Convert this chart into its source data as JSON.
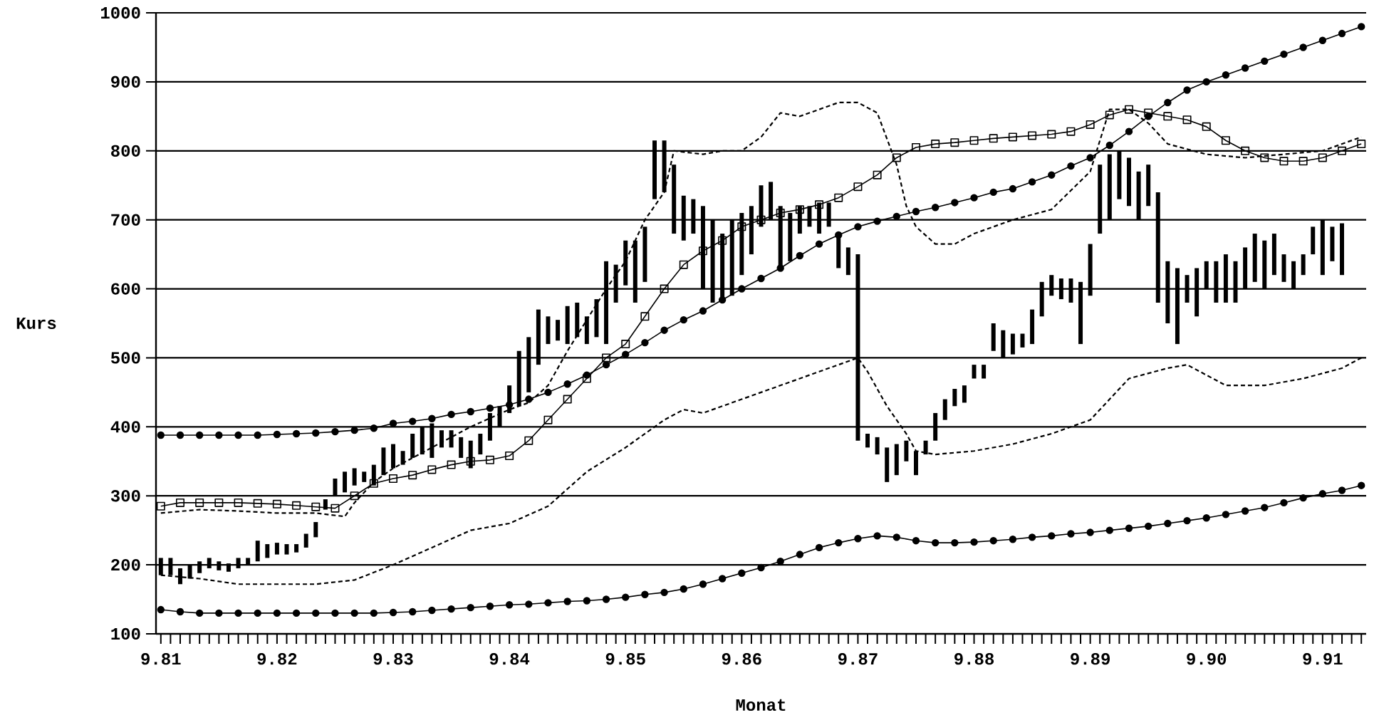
{
  "chart_data": {
    "type": "bar",
    "xlabel": "Monat",
    "ylabel": "Kurs",
    "grid": "y",
    "xlim": [
      "1981-08-16",
      "1992-01-16"
    ],
    "ylim": [
      100,
      1000
    ],
    "yticks": [
      100,
      200,
      300,
      400,
      500,
      600,
      700,
      800,
      900,
      1000
    ],
    "xticks": [
      {
        "value": "1981-09",
        "label": "9.81"
      },
      {
        "value": "1981-10",
        "label": null
      },
      {
        "value": "1981-11",
        "label": null
      },
      {
        "value": "1981-12",
        "label": null
      },
      {
        "value": "1982-01",
        "label": null
      },
      {
        "value": "1982-02",
        "label": null
      },
      {
        "value": "1982-03",
        "label": null
      },
      {
        "value": "1982-04",
        "label": null
      },
      {
        "value": "1982-05",
        "label": null
      },
      {
        "value": "1982-06",
        "label": null
      },
      {
        "value": "1982-07",
        "label": null
      },
      {
        "value": "1982-08",
        "label": null
      },
      {
        "value": "1982-09",
        "label": "9.82"
      },
      {
        "value": "1982-10",
        "label": null
      },
      {
        "value": "1982-11",
        "label": null
      },
      {
        "value": "1982-12",
        "label": null
      },
      {
        "value": "1983-01",
        "label": null
      },
      {
        "value": "1983-02",
        "label": null
      },
      {
        "value": "1983-03",
        "label": null
      },
      {
        "value": "1983-04",
        "label": null
      },
      {
        "value": "1983-05",
        "label": null
      },
      {
        "value": "1983-06",
        "label": null
      },
      {
        "value": "1983-07",
        "label": null
      },
      {
        "value": "1983-08",
        "label": null
      },
      {
        "value": "1983-09",
        "label": "9.83"
      },
      {
        "value": "1983-10",
        "label": null
      },
      {
        "value": "1983-11",
        "label": null
      },
      {
        "value": "1983-12",
        "label": null
      },
      {
        "value": "1984-01",
        "label": null
      },
      {
        "value": "1984-02",
        "label": null
      },
      {
        "value": "1984-03",
        "label": null
      },
      {
        "value": "1984-04",
        "label": null
      },
      {
        "value": "1984-05",
        "label": null
      },
      {
        "value": "1984-06",
        "label": null
      },
      {
        "value": "1984-07",
        "label": null
      },
      {
        "value": "1984-08",
        "label": null
      },
      {
        "value": "1984-09",
        "label": "9.84"
      },
      {
        "value": "1984-10",
        "label": null
      },
      {
        "value": "1984-11",
        "label": null
      },
      {
        "value": "1984-12",
        "label": null
      },
      {
        "value": "1985-01",
        "label": null
      },
      {
        "value": "1985-02",
        "label": null
      },
      {
        "value": "1985-03",
        "label": null
      },
      {
        "value": "1985-04",
        "label": null
      },
      {
        "value": "1985-05",
        "label": null
      },
      {
        "value": "1985-06",
        "label": null
      },
      {
        "value": "1985-07",
        "label": null
      },
      {
        "value": "1985-08",
        "label": null
      },
      {
        "value": "1985-09",
        "label": "9.85"
      },
      {
        "value": "1985-10",
        "label": null
      },
      {
        "value": "1985-11",
        "label": null
      },
      {
        "value": "1985-12",
        "label": null
      },
      {
        "value": "1986-01",
        "label": null
      },
      {
        "value": "1986-02",
        "label": null
      },
      {
        "value": "1986-03",
        "label": null
      },
      {
        "value": "1986-04",
        "label": null
      },
      {
        "value": "1986-05",
        "label": null
      },
      {
        "value": "1986-06",
        "label": null
      },
      {
        "value": "1986-07",
        "label": null
      },
      {
        "value": "1986-08",
        "label": null
      },
      {
        "value": "1986-09",
        "label": "9.86"
      },
      {
        "value": "1986-10",
        "label": null
      },
      {
        "value": "1986-11",
        "label": null
      },
      {
        "value": "1986-12",
        "label": null
      },
      {
        "value": "1987-01",
        "label": null
      },
      {
        "value": "1987-02",
        "label": null
      },
      {
        "value": "1987-03",
        "label": null
      },
      {
        "value": "1987-04",
        "label": null
      },
      {
        "value": "1987-05",
        "label": null
      },
      {
        "value": "1987-06",
        "label": null
      },
      {
        "value": "1987-07",
        "label": null
      },
      {
        "value": "1987-08",
        "label": null
      },
      {
        "value": "1987-09",
        "label": "9.87"
      },
      {
        "value": "1987-10",
        "label": null
      },
      {
        "value": "1987-11",
        "label": null
      },
      {
        "value": "1987-12",
        "label": null
      },
      {
        "value": "1988-01",
        "label": null
      },
      {
        "value": "1988-02",
        "label": null
      },
      {
        "value": "1988-03",
        "label": null
      },
      {
        "value": "1988-04",
        "label": null
      },
      {
        "value": "1988-05",
        "label": null
      },
      {
        "value": "1988-06",
        "label": null
      },
      {
        "value": "1988-07",
        "label": null
      },
      {
        "value": "1988-08",
        "label": null
      },
      {
        "value": "1988-09",
        "label": "9.88"
      },
      {
        "value": "1988-10",
        "label": null
      },
      {
        "value": "1988-11",
        "label": null
      },
      {
        "value": "1988-12",
        "label": null
      },
      {
        "value": "1989-01",
        "label": null
      },
      {
        "value": "1989-02",
        "label": null
      },
      {
        "value": "1989-03",
        "label": null
      },
      {
        "value": "1989-04",
        "label": null
      },
      {
        "value": "1989-05",
        "label": null
      },
      {
        "value": "1989-06",
        "label": null
      },
      {
        "value": "1989-07",
        "label": null
      },
      {
        "value": "1989-08",
        "label": null
      },
      {
        "value": "1989-09",
        "label": "9.89"
      },
      {
        "value": "1989-10",
        "label": null
      },
      {
        "value": "1989-11",
        "label": null
      },
      {
        "value": "1989-12",
        "label": null
      },
      {
        "value": "1990-01",
        "label": null
      },
      {
        "value": "1990-02",
        "label": null
      },
      {
        "value": "1990-03",
        "label": null
      },
      {
        "value": "1990-04",
        "label": null
      },
      {
        "value": "1990-05",
        "label": null
      },
      {
        "value": "1990-06",
        "label": null
      },
      {
        "value": "1990-07",
        "label": null
      },
      {
        "value": "1990-08",
        "label": null
      },
      {
        "value": "1990-09",
        "label": "9.90"
      },
      {
        "value": "1990-10",
        "label": null
      },
      {
        "value": "1990-11",
        "label": null
      },
      {
        "value": "1990-12",
        "label": null
      },
      {
        "value": "1991-01",
        "label": null
      },
      {
        "value": "1991-02",
        "label": null
      },
      {
        "value": "1991-03",
        "label": null
      },
      {
        "value": "1991-04",
        "label": null
      },
      {
        "value": "1991-05",
        "label": null
      },
      {
        "value": "1991-06",
        "label": null
      },
      {
        "value": "1991-07",
        "label": null
      },
      {
        "value": "1991-08",
        "label": null
      },
      {
        "value": "1991-09",
        "label": "9.91"
      },
      {
        "value": "1991-10",
        "label": null
      },
      {
        "value": "1991-11",
        "label": null
      },
      {
        "value": "1991-12",
        "label": null
      },
      {
        "value": "1992-01",
        "label": null
      }
    ],
    "series": [
      {
        "color": "#000000",
        "x": [
          "1981-09",
          "1981-10",
          "1981-11",
          "1981-12",
          "1982-01",
          "1982-02",
          "1982-03",
          "1982-04",
          "1982-05",
          "1982-06",
          "1982-07",
          "1982-08",
          "1982-09",
          "1982-10",
          "1982-11",
          "1982-12",
          "1983-01",
          "1983-02",
          "1983-03",
          "1983-04",
          "1983-05",
          "1983-06",
          "1983-07",
          "1983-08",
          "1983-09",
          "1983-10",
          "1983-11",
          "1983-12",
          "1984-01",
          "1984-02",
          "1984-03",
          "1984-04",
          "1984-05",
          "1984-06",
          "1984-07",
          "1984-08",
          "1984-09",
          "1984-10",
          "1984-11",
          "1984-12",
          "1985-01",
          "1985-02",
          "1985-03",
          "1985-04",
          "1985-05",
          "1985-06",
          "1985-07",
          "1985-08",
          "1985-09",
          "1985-10",
          "1985-11",
          "1985-12",
          "1986-01",
          "1986-02",
          "1986-03",
          "1986-04",
          "1986-05",
          "1986-06",
          "1986-07",
          "1986-08",
          "1986-09",
          "1986-10",
          "1986-11",
          "1986-12",
          "1987-01",
          "1987-02",
          "1987-03",
          "1987-04",
          "1987-05",
          "1987-06",
          "1987-07",
          "1987-08",
          "1987-09",
          "1987-10",
          "1987-11",
          "1987-12",
          "1988-01",
          "1988-02",
          "1988-03",
          "1988-04",
          "1988-05",
          "1988-06",
          "1988-07",
          "1988-08",
          "1988-09",
          "1988-10",
          "1988-11",
          "1988-12",
          "1989-01",
          "1989-02",
          "1989-03",
          "1989-04",
          "1989-05",
          "1989-06",
          "1989-07",
          "1989-08",
          "1989-09",
          "1989-10",
          "1989-11",
          "1989-12",
          "1990-01",
          "1990-02",
          "1990-03",
          "1990-04",
          "1990-05",
          "1990-06",
          "1990-07",
          "1990-08",
          "1990-09",
          "1990-10",
          "1990-11",
          "1990-12",
          "1991-01",
          "1991-02",
          "1991-03",
          "1991-04",
          "1991-05",
          "1991-06",
          "1991-07",
          "1991-08",
          "1991-09",
          "1991-10",
          "1991-11"
        ],
        "base": [
          185,
          185,
          172,
          180,
          188,
          195,
          192,
          190,
          195,
          200,
          205,
          210,
          215,
          215,
          218,
          225,
          240,
          280,
          300,
          305,
          315,
          320,
          315,
          330,
          340,
          345,
          355,
          360,
          355,
          370,
          370,
          355,
          340,
          360,
          380,
          400,
          420,
          430,
          450,
          490,
          520,
          525,
          520,
          530,
          520,
          530,
          520,
          580,
          605,
          580,
          610,
          730,
          740,
          680,
          670,
          680,
          600,
          580,
          580,
          590,
          620,
          650,
          690,
          700,
          630,
          640,
          680,
          690,
          680,
          690,
          630,
          620,
          380,
          370,
          360,
          320,
          330,
          350,
          330,
          360,
          380,
          410,
          430,
          435,
          470,
          470,
          510,
          500,
          505,
          515,
          520,
          560,
          590,
          585,
          580,
          520,
          590,
          680,
          700,
          730,
          720,
          700,
          720,
          580,
          550,
          520,
          580,
          560,
          600,
          580,
          580,
          580,
          600,
          610,
          600,
          620,
          610,
          600,
          620,
          650,
          620,
          640,
          620
        ],
        "values": [
          25,
          25,
          23,
          20,
          17,
          15,
          13,
          12,
          15,
          10,
          30,
          20,
          17,
          15,
          12,
          20,
          22,
          15,
          25,
          30,
          25,
          15,
          30,
          40,
          35,
          20,
          35,
          40,
          50,
          25,
          25,
          30,
          40,
          30,
          40,
          30,
          40,
          80,
          80,
          80,
          40,
          30,
          55,
          50,
          40,
          55,
          120,
          55,
          65,
          90,
          80,
          85,
          75,
          100,
          65,
          50,
          120,
          120,
          100,
          110,
          90,
          70,
          60,
          55,
          90,
          70,
          40,
          30,
          45,
          35,
          45,
          40,
          270,
          20,
          25,
          50,
          45,
          30,
          35,
          20,
          40,
          30,
          25,
          25,
          20,
          20,
          40,
          40,
          30,
          20,
          50,
          50,
          30,
          30,
          35,
          90,
          75,
          100,
          95,
          70,
          70,
          70,
          60,
          160,
          90,
          110,
          40,
          70,
          40,
          60,
          70,
          60,
          60,
          70,
          70,
          60,
          40,
          40,
          30,
          40,
          80,
          50,
          75
        ]
      },
      {
        "type": "line",
        "color": "#000000",
        "marker": "circle",
        "x": [
          "1981-09",
          "1981-11",
          "1982-01",
          "1982-03",
          "1982-05",
          "1982-07",
          "1982-09",
          "1982-11",
          "1983-01",
          "1983-03",
          "1983-05",
          "1983-07",
          "1983-09",
          "1983-11",
          "1984-01",
          "1984-03",
          "1984-05",
          "1984-07",
          "1984-09",
          "1984-11",
          "1985-01",
          "1985-03",
          "1985-05",
          "1985-07",
          "1985-09",
          "1985-11",
          "1986-01",
          "1986-03",
          "1986-05",
          "1986-07",
          "1986-09",
          "1986-11",
          "1987-01",
          "1987-03",
          "1987-05",
          "1987-07",
          "1987-09",
          "1987-11",
          "1988-01",
          "1988-03",
          "1988-05",
          "1988-07",
          "1988-09",
          "1988-11",
          "1989-01",
          "1989-03",
          "1989-05",
          "1989-07",
          "1989-09",
          "1989-11",
          "1990-01",
          "1990-03",
          "1990-05",
          "1990-07",
          "1990-09",
          "1990-11",
          "1991-01",
          "1991-03",
          "1991-05",
          "1991-07",
          "1991-09",
          "1991-11",
          "1992-01"
        ],
        "values": [
          388,
          388,
          388,
          388,
          388,
          388,
          389,
          390,
          391,
          393,
          395,
          398,
          405,
          408,
          412,
          418,
          422,
          427,
          432,
          440,
          450,
          462,
          475,
          490,
          505,
          522,
          540,
          555,
          568,
          584,
          600,
          615,
          630,
          648,
          665,
          678,
          690,
          698,
          705,
          712,
          718,
          725,
          732,
          740,
          745,
          755,
          765,
          778,
          790,
          808,
          828,
          850,
          870,
          888,
          900,
          910,
          920,
          930,
          940,
          950,
          960,
          970,
          980
        ]
      },
      {
        "type": "line",
        "color": "#000000",
        "marker": "circle",
        "x": [
          "1981-09",
          "1981-11",
          "1982-01",
          "1982-03",
          "1982-05",
          "1982-07",
          "1982-09",
          "1982-11",
          "1983-01",
          "1983-03",
          "1983-05",
          "1983-07",
          "1983-09",
          "1983-11",
          "1984-01",
          "1984-03",
          "1984-05",
          "1984-07",
          "1984-09",
          "1984-11",
          "1985-01",
          "1985-03",
          "1985-05",
          "1985-07",
          "1985-09",
          "1985-11",
          "1986-01",
          "1986-03",
          "1986-05",
          "1986-07",
          "1986-09",
          "1986-11",
          "1987-01",
          "1987-03",
          "1987-05",
          "1987-07",
          "1987-09",
          "1987-11",
          "1988-01",
          "1988-03",
          "1988-05",
          "1988-07",
          "1988-09",
          "1988-11",
          "1989-01",
          "1989-03",
          "1989-05",
          "1989-07",
          "1989-09",
          "1989-11",
          "1990-01",
          "1990-03",
          "1990-05",
          "1990-07",
          "1990-09",
          "1990-11",
          "1991-01",
          "1991-03",
          "1991-05",
          "1991-07",
          "1991-09",
          "1991-11",
          "1992-01"
        ],
        "values": [
          135,
          132,
          130,
          130,
          130,
          130,
          130,
          130,
          130,
          130,
          130,
          130,
          131,
          132,
          134,
          136,
          138,
          140,
          142,
          143,
          145,
          147,
          148,
          150,
          153,
          157,
          160,
          165,
          172,
          180,
          188,
          196,
          205,
          215,
          225,
          232,
          238,
          242,
          240,
          235,
          232,
          232,
          233,
          235,
          237,
          240,
          242,
          245,
          247,
          250,
          253,
          256,
          260,
          264,
          268,
          273,
          278,
          283,
          290,
          297,
          303,
          308,
          315
        ]
      },
      {
        "type": "line",
        "color": "#000000",
        "marker": "square",
        "x": [
          "1981-09",
          "1981-11",
          "1982-01",
          "1982-03",
          "1982-05",
          "1982-07",
          "1982-09",
          "1982-11",
          "1983-01",
          "1983-03",
          "1983-05",
          "1983-07",
          "1983-09",
          "1983-11",
          "1984-01",
          "1984-03",
          "1984-05",
          "1984-07",
          "1984-09",
          "1984-11",
          "1985-01",
          "1985-03",
          "1985-05",
          "1985-07",
          "1985-09",
          "1985-11",
          "1986-01",
          "1986-03",
          "1986-05",
          "1986-07",
          "1986-09",
          "1986-11",
          "1987-01",
          "1987-03",
          "1987-05",
          "1987-07",
          "1987-09",
          "1987-11",
          "1988-01",
          "1988-03",
          "1988-05",
          "1988-07",
          "1988-09",
          "1988-11",
          "1989-01",
          "1989-03",
          "1989-05",
          "1989-07",
          "1989-09",
          "1989-11",
          "1990-01",
          "1990-03",
          "1990-05",
          "1990-07",
          "1990-09",
          "1990-11",
          "1991-01",
          "1991-03",
          "1991-05",
          "1991-07",
          "1991-09",
          "1991-11",
          "1992-01"
        ],
        "values": [
          285,
          290,
          290,
          290,
          290,
          289,
          288,
          286,
          284,
          282,
          300,
          318,
          325,
          330,
          338,
          345,
          350,
          352,
          358,
          380,
          410,
          440,
          470,
          500,
          520,
          560,
          600,
          635,
          655,
          670,
          690,
          700,
          710,
          715,
          722,
          732,
          748,
          765,
          790,
          805,
          810,
          812,
          815,
          818,
          820,
          822,
          824,
          828,
          838,
          852,
          860,
          855,
          850,
          845,
          835,
          815,
          800,
          790,
          785,
          785,
          790,
          800,
          810
        ]
      },
      {
        "type": "line",
        "color": "#000000",
        "marker": "none",
        "line_style": "dashed",
        "x": [
          "1981-09",
          "1982-01",
          "1982-05",
          "1982-09",
          "1983-01",
          "1983-04",
          "1983-05",
          "1983-07",
          "1983-09",
          "1984-01",
          "1984-05",
          "1984-09",
          "1984-11",
          "1985-01",
          "1985-03",
          "1985-05",
          "1985-07",
          "1985-09",
          "1985-11",
          "1986-01",
          "1986-02",
          "1986-05",
          "1986-07",
          "1986-09",
          "1986-11",
          "1987-01",
          "1987-03",
          "1987-05",
          "1987-07",
          "1987-09",
          "1987-11",
          "1988-01",
          "1988-02",
          "1988-03",
          "1988-05",
          "1988-07",
          "1988-09",
          "1989-01",
          "1989-05",
          "1989-09",
          "1989-11",
          "1990-01",
          "1990-03",
          "1990-05",
          "1990-09",
          "1991-01",
          "1991-05",
          "1991-09",
          "1992-01"
        ],
        "values": [
          275,
          280,
          278,
          275,
          275,
          270,
          290,
          320,
          340,
          370,
          400,
          425,
          435,
          460,
          510,
          555,
          600,
          640,
          700,
          740,
          800,
          795,
          800,
          800,
          820,
          855,
          850,
          860,
          870,
          870,
          855,
          780,
          720,
          690,
          665,
          665,
          680,
          700,
          715,
          770,
          860,
          860,
          840,
          810,
          795,
          790,
          795,
          800,
          820
        ]
      },
      {
        "type": "line",
        "color": "#000000",
        "marker": "none",
        "line_style": "dashed",
        "x": [
          "1981-09",
          "1982-01",
          "1982-05",
          "1982-09",
          "1983-01",
          "1983-05",
          "1983-09",
          "1984-01",
          "1984-05",
          "1984-09",
          "1985-01",
          "1985-03",
          "1985-05",
          "1985-09",
          "1986-01",
          "1986-03",
          "1986-05",
          "1986-09",
          "1987-01",
          "1987-05",
          "1987-09",
          "1987-10",
          "1987-12",
          "1988-02",
          "1988-03",
          "1988-05",
          "1988-09",
          "1989-01",
          "1989-05",
          "1989-09",
          "1989-11",
          "1990-01",
          "1990-05",
          "1990-07",
          "1990-09",
          "1990-11",
          "1991-03",
          "1991-07",
          "1991-11",
          "1992-01"
        ],
        "values": [
          185,
          180,
          172,
          172,
          172,
          178,
          200,
          225,
          250,
          260,
          285,
          310,
          335,
          370,
          410,
          425,
          420,
          440,
          460,
          480,
          500,
          480,
          430,
          390,
          365,
          360,
          365,
          375,
          390,
          410,
          440,
          470,
          485,
          490,
          475,
          460,
          460,
          470,
          485,
          500
        ]
      }
    ]
  }
}
